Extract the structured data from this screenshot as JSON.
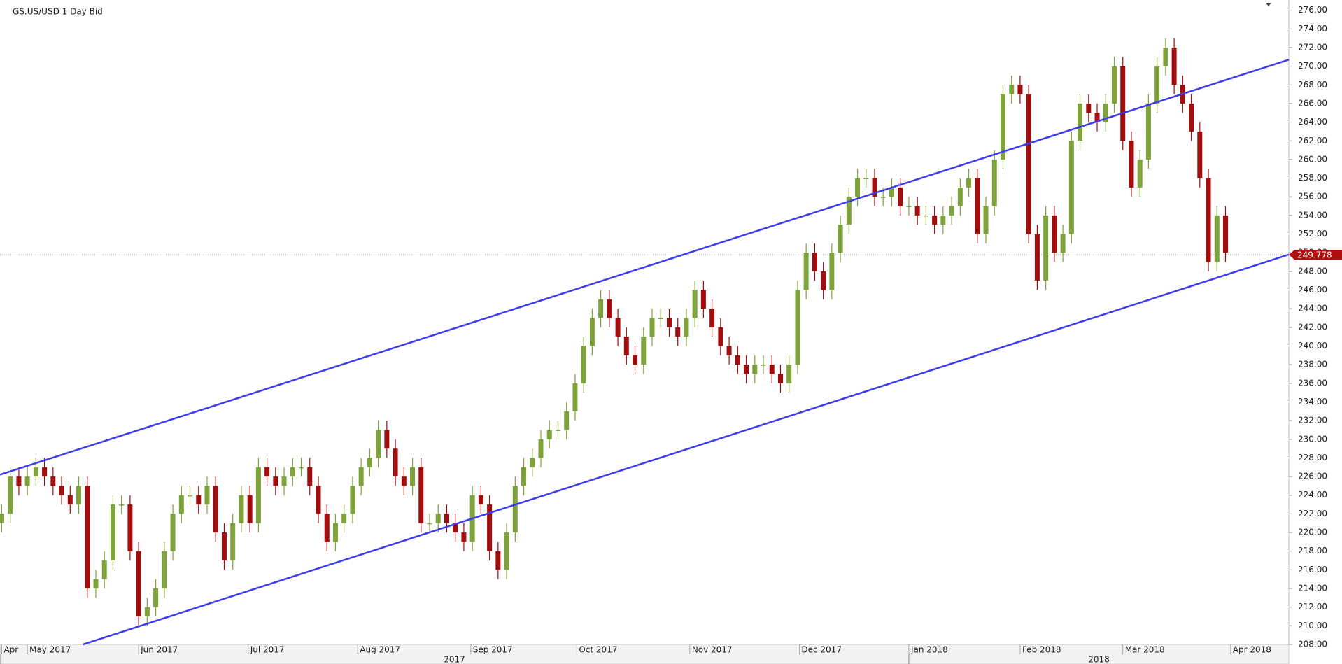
{
  "chart_data": {
    "type": "candlestick",
    "title": "GS.US/USD  1 Day Bid",
    "up_color": "#7ea33a",
    "down_color": "#a30d0d",
    "grid": false,
    "open": [
      221,
      222,
      226,
      225,
      226,
      227,
      226,
      225,
      224,
      223,
      225,
      214,
      215,
      217,
      223,
      223,
      218,
      211,
      212,
      214,
      218,
      222,
      224,
      224,
      223,
      225,
      220,
      217,
      221,
      224,
      221,
      227,
      226,
      225,
      226,
      227,
      227,
      225,
      222,
      219,
      221,
      222,
      225,
      227,
      228,
      231,
      229,
      226,
      225,
      227,
      221,
      221,
      222,
      221,
      220,
      219,
      224,
      223,
      218,
      216,
      220,
      225,
      227,
      228,
      230,
      231,
      231,
      233,
      236,
      240,
      243,
      245,
      243,
      241,
      239,
      238,
      241,
      243,
      243,
      242,
      241,
      243,
      246,
      244,
      242,
      240,
      239,
      238,
      237,
      238,
      238,
      237,
      236,
      238,
      246,
      250,
      248,
      246,
      250,
      253,
      256,
      258,
      258,
      256,
      256,
      257,
      255,
      255,
      254,
      254,
      253,
      254,
      255,
      257,
      258,
      252,
      255,
      260,
      267,
      268,
      267,
      252,
      247,
      254,
      250,
      252,
      262,
      266,
      265,
      264,
      266,
      270,
      262,
      257,
      260,
      266,
      270,
      272,
      268,
      266,
      263,
      258,
      249,
      254
    ],
    "high": [
      223,
      227,
      227,
      227,
      228,
      228,
      227,
      226,
      225,
      226,
      226,
      216,
      218,
      224,
      224,
      224,
      219,
      213,
      215,
      219,
      223,
      225,
      225,
      225,
      226,
      226,
      221,
      222,
      225,
      225,
      228,
      228,
      227,
      227,
      228,
      228,
      228,
      226,
      223,
      222,
      223,
      226,
      228,
      229,
      232,
      232,
      230,
      227,
      228,
      228,
      222,
      223,
      223,
      222,
      221,
      225,
      225,
      224,
      219,
      221,
      226,
      228,
      229,
      231,
      232,
      232,
      234,
      237,
      241,
      244,
      246,
      246,
      244,
      242,
      240,
      242,
      244,
      244,
      244,
      243,
      244,
      247,
      247,
      245,
      243,
      241,
      240,
      239,
      239,
      239,
      239,
      238,
      239,
      247,
      251,
      251,
      249,
      251,
      254,
      257,
      259,
      259,
      259,
      257,
      258,
      258,
      256,
      256,
      255,
      255,
      255,
      256,
      258,
      259,
      259,
      256,
      261,
      268,
      269,
      269,
      268,
      253,
      255,
      255,
      253,
      263,
      267,
      267,
      266,
      267,
      271,
      271,
      263,
      261,
      267,
      271,
      273,
      273,
      269,
      267,
      264,
      259,
      255,
      255
    ],
    "low": [
      220,
      221,
      224,
      224,
      225,
      225,
      224,
      223,
      222,
      222,
      213,
      213,
      214,
      216,
      222,
      217,
      210,
      210,
      211,
      213,
      217,
      221,
      223,
      222,
      222,
      219,
      216,
      216,
      220,
      220,
      220,
      225,
      224,
      224,
      225,
      226,
      224,
      221,
      218,
      218,
      220,
      221,
      224,
      226,
      227,
      228,
      225,
      224,
      224,
      220,
      220,
      220,
      220,
      219,
      218,
      218,
      222,
      217,
      215,
      215,
      219,
      224,
      226,
      227,
      229,
      230,
      230,
      232,
      235,
      239,
      242,
      242,
      240,
      238,
      237,
      237,
      240,
      242,
      241,
      240,
      240,
      242,
      243,
      241,
      239,
      238,
      237,
      236,
      236,
      237,
      236,
      235,
      235,
      237,
      245,
      247,
      245,
      245,
      249,
      252,
      255,
      257,
      255,
      255,
      255,
      254,
      254,
      253,
      253,
      252,
      252,
      253,
      254,
      256,
      251,
      251,
      254,
      259,
      266,
      266,
      251,
      246,
      246,
      249,
      249,
      251,
      261,
      264,
      263,
      263,
      265,
      261,
      256,
      256,
      259,
      265,
      269,
      267,
      265,
      262,
      257,
      248,
      248,
      249
    ],
    "close": [
      222,
      226,
      225,
      226,
      227,
      226,
      225,
      224,
      223,
      225,
      214,
      215,
      217,
      223,
      223,
      218,
      211,
      212,
      214,
      218,
      222,
      224,
      224,
      223,
      225,
      220,
      217,
      221,
      224,
      221,
      227,
      226,
      225,
      226,
      227,
      227,
      225,
      222,
      219,
      221,
      222,
      225,
      227,
      228,
      231,
      229,
      226,
      225,
      227,
      221,
      221,
      222,
      221,
      220,
      219,
      224,
      223,
      218,
      216,
      220,
      225,
      227,
      228,
      230,
      231,
      231,
      233,
      236,
      240,
      243,
      245,
      243,
      241,
      239,
      238,
      241,
      243,
      243,
      242,
      241,
      243,
      246,
      244,
      242,
      240,
      239,
      238,
      237,
      238,
      238,
      237,
      236,
      238,
      246,
      250,
      248,
      246,
      250,
      253,
      256,
      258,
      258,
      256,
      256,
      257,
      255,
      255,
      254,
      254,
      253,
      254,
      255,
      257,
      258,
      252,
      255,
      260,
      267,
      268,
      267,
      252,
      247,
      254,
      250,
      252,
      262,
      266,
      265,
      264,
      266,
      270,
      262,
      257,
      260,
      266,
      270,
      272,
      268,
      266,
      263,
      258,
      249,
      254,
      250
    ],
    "xlim": [
      -0.2,
      150.4
    ],
    "xticks": [
      {
        "value": 0,
        "label": "Apr"
      },
      {
        "value": 3,
        "label": "May 2017"
      },
      {
        "value": 16,
        "label": "Jun 2017"
      },
      {
        "value": 28.8,
        "label": "Jul 2017"
      },
      {
        "value": 41.6,
        "label": "Aug 2017"
      },
      {
        "value": 54.8,
        "label": "Sep 2017"
      },
      {
        "value": 67.2,
        "label": "Oct 2017"
      },
      {
        "value": 80.4,
        "label": "Nov 2017"
      },
      {
        "value": 93.2,
        "label": "Dec 2017"
      },
      {
        "value": 106,
        "label": "Jan 2018"
      },
      {
        "value": 119,
        "label": "Feb 2018"
      },
      {
        "value": 131,
        "label": "Mar 2018"
      },
      {
        "value": 143.6,
        "label": "Apr 2018"
      }
    ],
    "year_ticks": [
      {
        "value": -0.2,
        "label": "2017"
      },
      {
        "value": 106,
        "label": "2018"
      }
    ],
    "ylim": [
      208,
      277.1
    ],
    "yticks": [
      {
        "value": 208,
        "label": "208.00"
      },
      {
        "value": 210,
        "label": "210.00"
      },
      {
        "value": 212,
        "label": "212.00"
      },
      {
        "value": 214,
        "label": "214.00"
      },
      {
        "value": 216,
        "label": "216.00"
      },
      {
        "value": 218,
        "label": "218.00"
      },
      {
        "value": 220,
        "label": "220.00"
      },
      {
        "value": 222,
        "label": "222.00"
      },
      {
        "value": 224,
        "label": "224.00"
      },
      {
        "value": 226,
        "label": "226.00"
      },
      {
        "value": 228,
        "label": "228.00"
      },
      {
        "value": 230,
        "label": "230.00"
      },
      {
        "value": 232,
        "label": "232.00"
      },
      {
        "value": 234,
        "label": "234.00"
      },
      {
        "value": 236,
        "label": "236.00"
      },
      {
        "value": 238,
        "label": "238.00"
      },
      {
        "value": 240,
        "label": "240.00"
      },
      {
        "value": 242,
        "label": "242.00"
      },
      {
        "value": 244,
        "label": "244.00"
      },
      {
        "value": 246,
        "label": "246.00"
      },
      {
        "value": 248,
        "label": "248.00"
      },
      {
        "value": 250,
        "label": "250.00"
      },
      {
        "value": 252,
        "label": "252.00"
      },
      {
        "value": 254,
        "label": "254.00"
      },
      {
        "value": 256,
        "label": "256.00"
      },
      {
        "value": 258,
        "label": "258.00"
      },
      {
        "value": 260,
        "label": "260.00"
      },
      {
        "value": 262,
        "label": "262.00"
      },
      {
        "value": 264,
        "label": "264.00"
      },
      {
        "value": 266,
        "label": "266.00"
      },
      {
        "value": 268,
        "label": "268.00"
      },
      {
        "value": 270,
        "label": "270.00"
      },
      {
        "value": 272,
        "label": "272.00"
      },
      {
        "value": 274,
        "label": "274.00"
      },
      {
        "value": 276,
        "label": "276.00"
      }
    ],
    "last_price": 249.778,
    "last_price_color": "#b00d0d",
    "trendline_color": "#3b3bf0",
    "trendlines": [
      {
        "x": [
          -0.2,
          150.4
        ],
        "y": [
          226.2,
          270.7
        ]
      },
      {
        "x": [
          9.5,
          150.4
        ],
        "y": [
          208.0,
          249.8
        ]
      }
    ]
  }
}
